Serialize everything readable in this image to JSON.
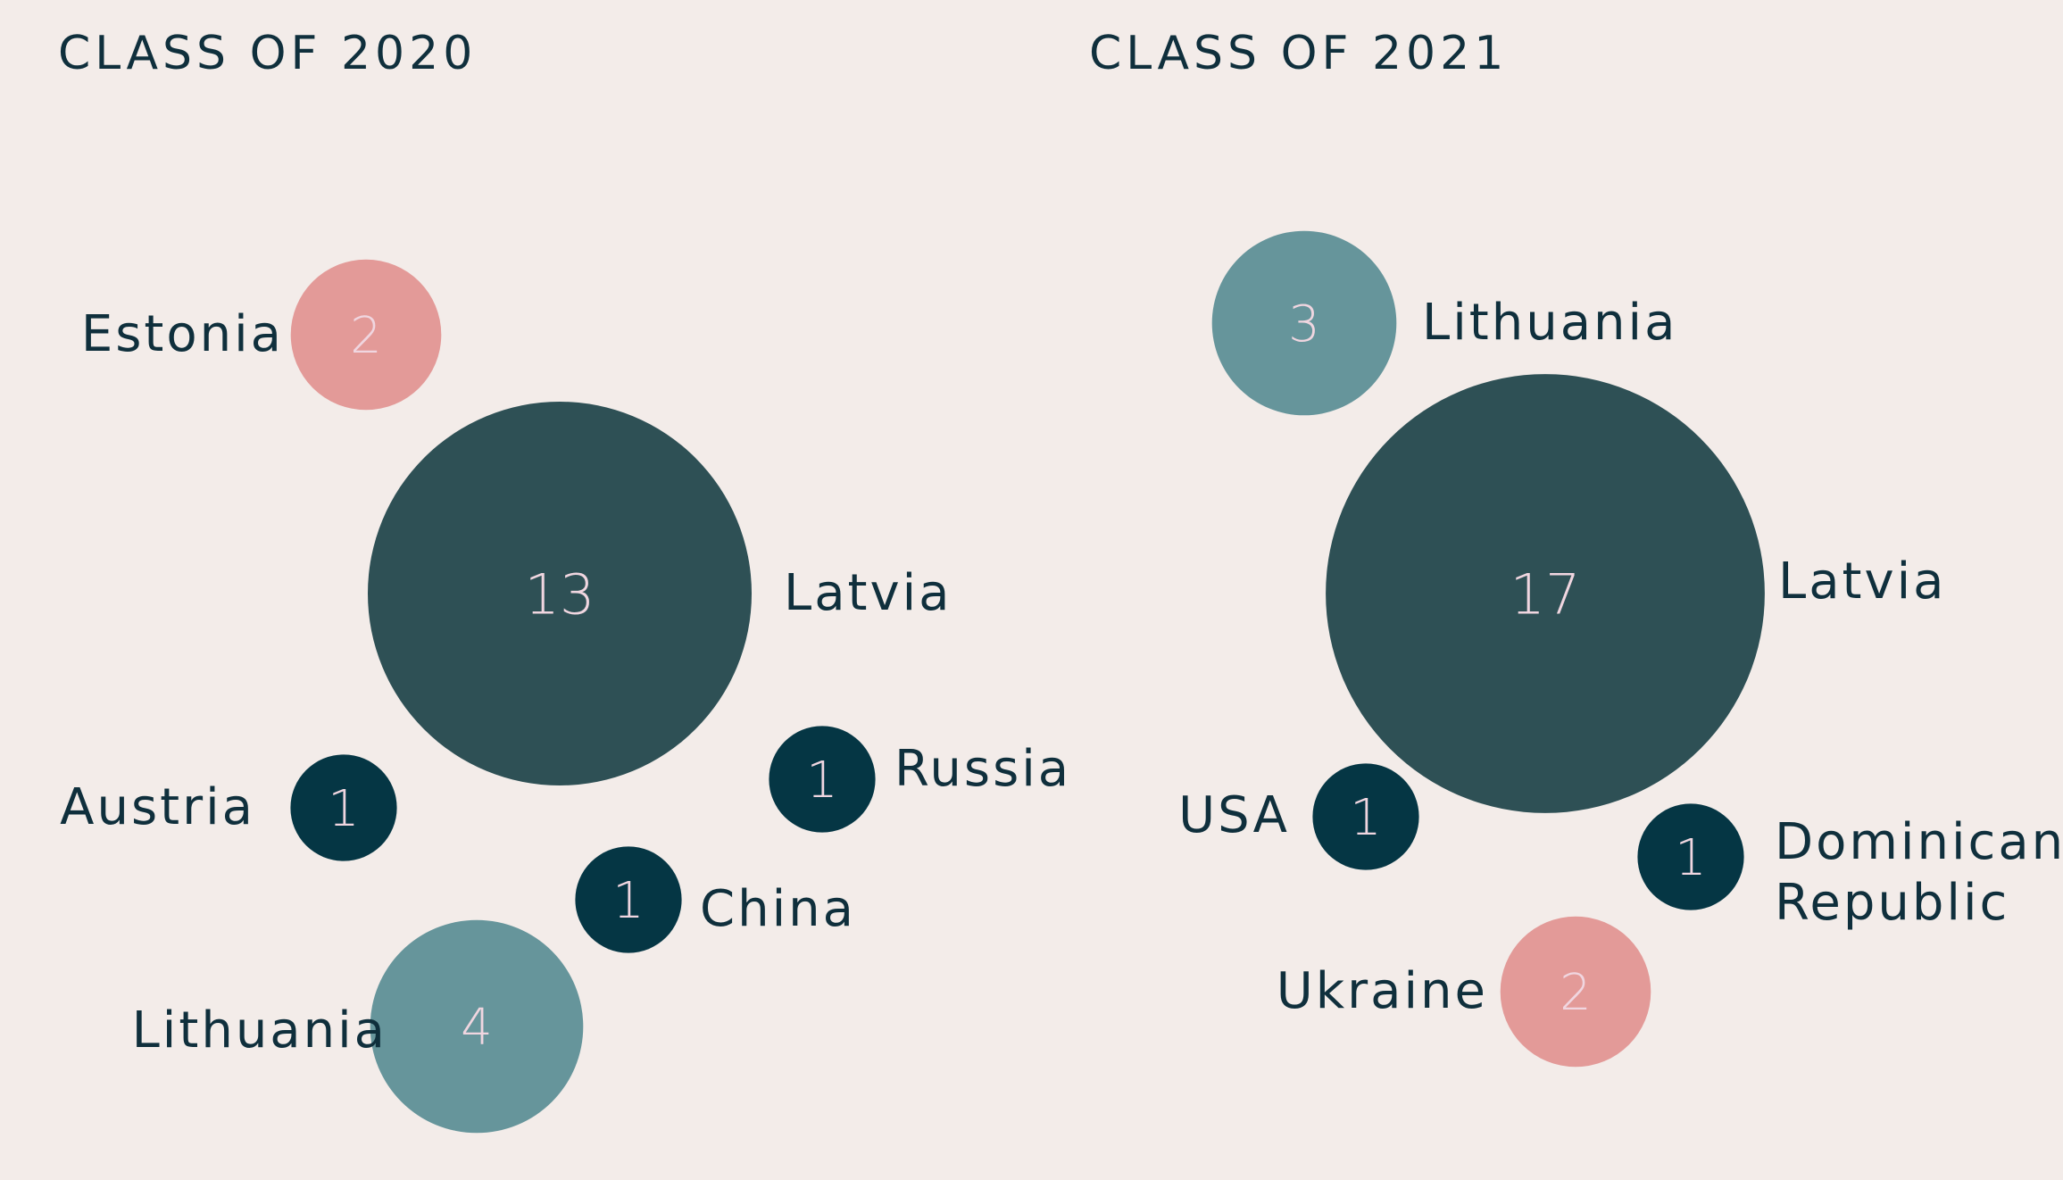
{
  "chart_data": [
    {
      "type": "bubble",
      "title": "CLASS OF 2020",
      "bubbles": [
        {
          "country": "Estonia",
          "value": 2,
          "color": "#e39a98"
        },
        {
          "country": "Latvia",
          "value": 13,
          "color": "#2e5055"
        },
        {
          "country": "Austria",
          "value": 1,
          "color": "#053644"
        },
        {
          "country": "Russia",
          "value": 1,
          "color": "#053644"
        },
        {
          "country": "China",
          "value": 1,
          "color": "#053644"
        },
        {
          "country": "Lithuania",
          "value": 4,
          "color": "#66959b"
        }
      ]
    },
    {
      "type": "bubble",
      "title": "CLASS OF 2021",
      "bubbles": [
        {
          "country": "Lithuania",
          "value": 3,
          "color": "#66959b"
        },
        {
          "country": "Latvia",
          "value": 17,
          "color": "#2e5055"
        },
        {
          "country": "USA",
          "value": 1,
          "color": "#053644"
        },
        {
          "country": "Dominican Republic",
          "value": 1,
          "color": "#053644"
        },
        {
          "country": "Ukraine",
          "value": 2,
          "color": "#e39a98"
        }
      ]
    }
  ]
}
